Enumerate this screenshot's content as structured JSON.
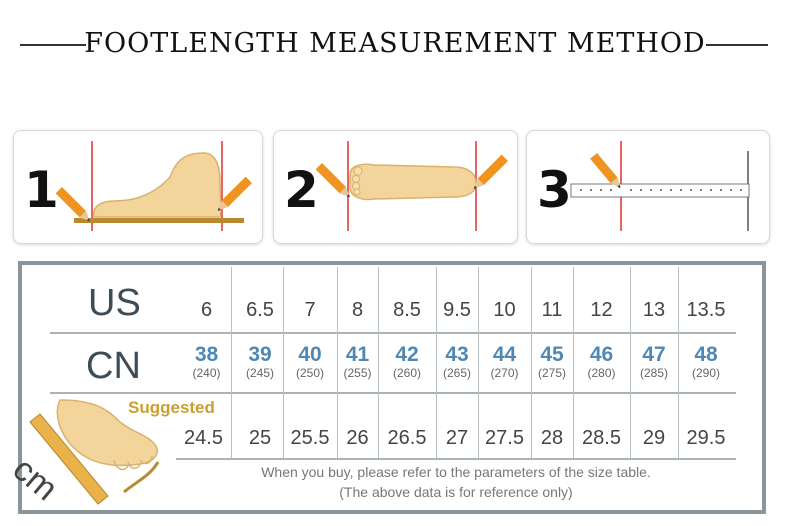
{
  "title": "FOOTLENGTH MEASUREMENT METHOD",
  "steps": [
    {
      "number": "1",
      "icon": "foot-side-measure-icon"
    },
    {
      "number": "2",
      "icon": "foot-top-measure-icon"
    },
    {
      "number": "3",
      "icon": "ruler-measure-icon"
    }
  ],
  "table": {
    "us_label": "US",
    "cn_label": "CN",
    "cm_label": "cm",
    "suggested_label": "Suggested",
    "us": [
      "6",
      "6.5",
      "7",
      "8",
      "8.5",
      "9.5",
      "10",
      "11",
      "12",
      "13",
      "13.5"
    ],
    "cn": [
      "38",
      "39",
      "40",
      "41",
      "42",
      "43",
      "44",
      "45",
      "46",
      "47",
      "48"
    ],
    "cn_mm": [
      "(240)",
      "(245)",
      "(250)",
      "(255)",
      "(260)",
      "(265)",
      "(270)",
      "(275)",
      "(280)",
      "(285)",
      "(290)"
    ],
    "cm": [
      "24.5",
      "25",
      "25.5",
      "26",
      "26.5",
      "27",
      "27.5",
      "28",
      "28.5",
      "29",
      "29.5"
    ]
  },
  "note_line1": "When you buy, please refer to the parameters of the size table.",
  "note_line2": "(The above data is for reference only)",
  "colors": {
    "frame": "#8a969d",
    "cn": "#4f88b4",
    "suggested": "#c9a033",
    "foot": "#f3d49a"
  }
}
